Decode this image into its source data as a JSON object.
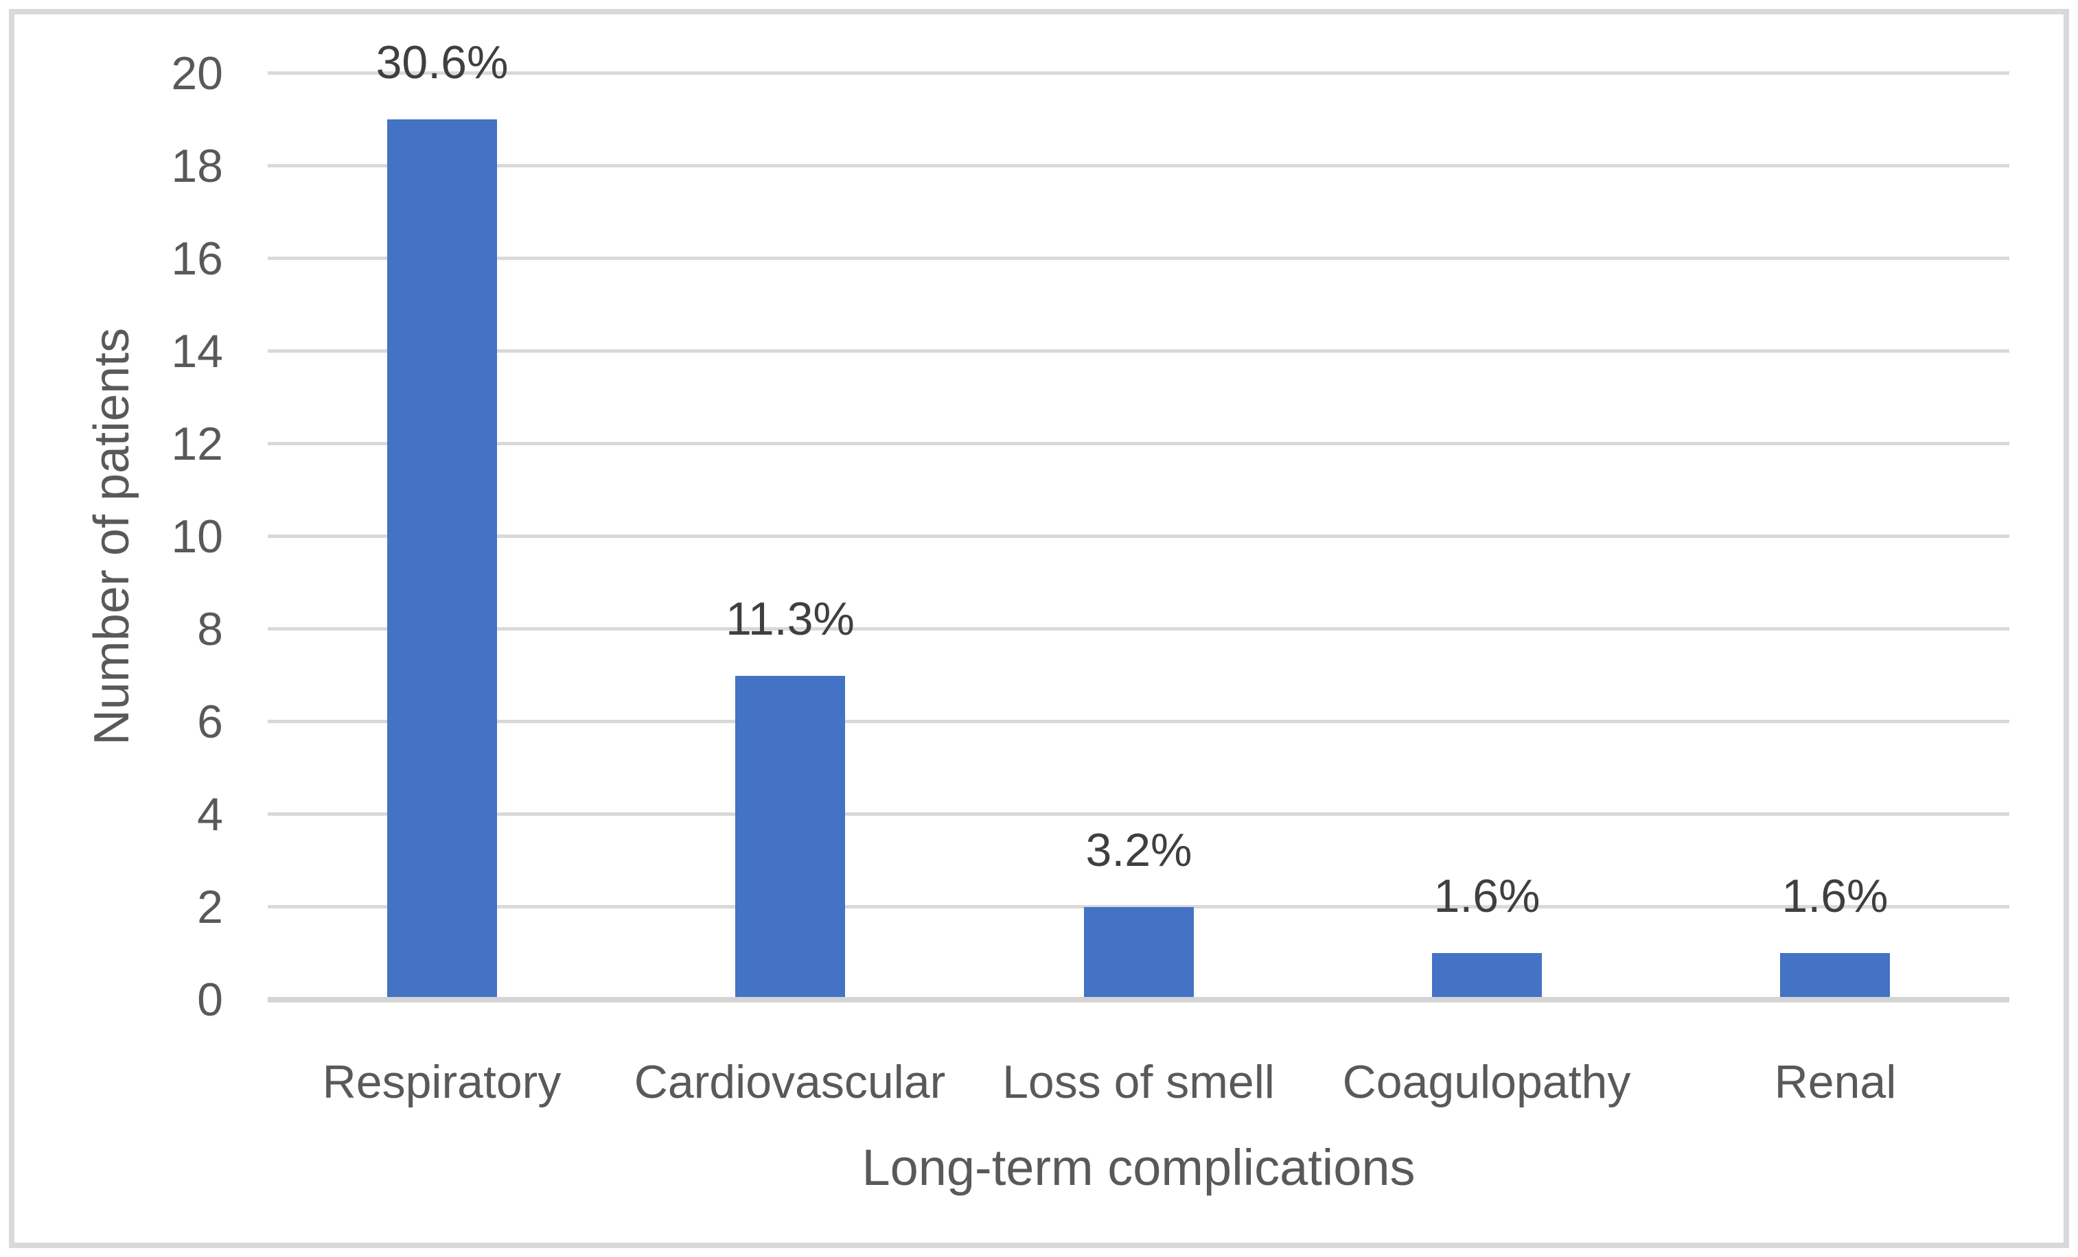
{
  "chart_data": {
    "type": "bar",
    "title": "",
    "categories": [
      "Respiratory",
      "Cardiovascular",
      "Loss of smell",
      "Coagulopathy",
      "Renal"
    ],
    "values": [
      19,
      7,
      2,
      1,
      1
    ],
    "data_labels": [
      "30.6%",
      "11.3%",
      "3.2%",
      "1.6%",
      "1.6%"
    ],
    "xlabel": "Long-term complications",
    "ylabel": "Number of patients",
    "ylim": [
      0,
      20
    ],
    "ytick_interval": 2,
    "yticks": [
      "0",
      "2",
      "4",
      "6",
      "8",
      "10",
      "12",
      "14",
      "16",
      "18",
      "20"
    ],
    "grid": "horizontal",
    "legend": "none",
    "colors": {
      "bar": "#4472C4",
      "gridline": "#D9D9D9",
      "axis_line": "#D4D4D4",
      "axis_text": "#595959",
      "data_label_text": "#3F3F3F",
      "frame_border": "#D9D9D9",
      "background": "#FFFFFF"
    }
  }
}
